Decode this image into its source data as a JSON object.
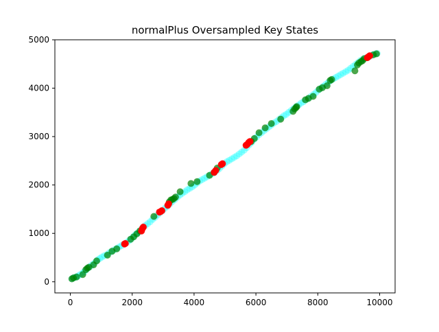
{
  "chart_data": {
    "type": "scatter",
    "title": "normalPlus Oversampled Key States",
    "xlabel": "",
    "ylabel": "",
    "xlim": [
      -500,
      10500
    ],
    "ylim": [
      -230,
      5000
    ],
    "xticks": [
      0,
      2000,
      4000,
      6000,
      8000,
      10000
    ],
    "yticks": [
      0,
      1000,
      2000,
      3000,
      4000,
      5000
    ],
    "grid": false,
    "legend": "none",
    "series": [
      {
        "color": "#00ffff",
        "marker_alpha": 0.35,
        "points": [
          [
            50,
            60
          ],
          [
            100,
            80
          ],
          [
            150,
            90
          ],
          [
            200,
            100
          ],
          [
            250,
            120
          ],
          [
            320,
            150
          ],
          [
            400,
            180
          ],
          [
            450,
            210
          ],
          [
            520,
            250
          ],
          [
            580,
            290
          ],
          [
            650,
            320
          ],
          [
            720,
            360
          ],
          [
            800,
            400
          ],
          [
            880,
            450
          ],
          [
            950,
            480
          ],
          [
            1020,
            510
          ],
          [
            1100,
            540
          ],
          [
            1180,
            560
          ],
          [
            1260,
            600
          ],
          [
            1340,
            630
          ],
          [
            1420,
            660
          ],
          [
            1500,
            690
          ],
          [
            1580,
            720
          ],
          [
            1660,
            750
          ],
          [
            1740,
            780
          ],
          [
            1820,
            810
          ],
          [
            1900,
            850
          ],
          [
            1960,
            880
          ],
          [
            2020,
            920
          ],
          [
            2080,
            960
          ],
          [
            2140,
            990
          ],
          [
            2200,
            1020
          ],
          [
            2260,
            1060
          ],
          [
            2340,
            1120
          ],
          [
            2420,
            1160
          ],
          [
            2500,
            1200
          ],
          [
            2580,
            1240
          ],
          [
            2660,
            1290
          ],
          [
            2740,
            1330
          ],
          [
            2820,
            1380
          ],
          [
            2900,
            1430
          ],
          [
            2980,
            1470
          ],
          [
            3060,
            1520
          ],
          [
            3140,
            1560
          ],
          [
            3220,
            1610
          ],
          [
            3300,
            1660
          ],
          [
            3380,
            1700
          ],
          [
            3460,
            1750
          ],
          [
            3540,
            1790
          ],
          [
            3620,
            1830
          ],
          [
            3700,
            1860
          ],
          [
            3780,
            1900
          ],
          [
            3860,
            1930
          ],
          [
            3940,
            1960
          ],
          [
            4020,
            2000
          ],
          [
            4100,
            2040
          ],
          [
            4180,
            2080
          ],
          [
            4260,
            2110
          ],
          [
            4340,
            2140
          ],
          [
            4420,
            2170
          ],
          [
            4500,
            2200
          ],
          [
            4580,
            2230
          ],
          [
            4660,
            2260
          ],
          [
            4740,
            2300
          ],
          [
            4820,
            2340
          ],
          [
            4900,
            2390
          ],
          [
            4980,
            2440
          ],
          [
            5060,
            2480
          ],
          [
            5140,
            2510
          ],
          [
            5220,
            2540
          ],
          [
            5300,
            2570
          ],
          [
            5380,
            2600
          ],
          [
            5460,
            2640
          ],
          [
            5540,
            2680
          ],
          [
            5620,
            2720
          ],
          [
            5700,
            2770
          ],
          [
            5780,
            2830
          ],
          [
            5860,
            2880
          ],
          [
            5940,
            2940
          ],
          [
            6020,
            2990
          ],
          [
            6100,
            3040
          ],
          [
            6180,
            3080
          ],
          [
            6260,
            3120
          ],
          [
            6340,
            3160
          ],
          [
            6420,
            3200
          ],
          [
            6500,
            3240
          ],
          [
            6580,
            3280
          ],
          [
            6660,
            3310
          ],
          [
            6740,
            3350
          ],
          [
            6820,
            3390
          ],
          [
            6900,
            3430
          ],
          [
            6980,
            3460
          ],
          [
            7060,
            3500
          ],
          [
            7140,
            3540
          ],
          [
            7220,
            3580
          ],
          [
            7300,
            3620
          ],
          [
            7380,
            3650
          ],
          [
            7460,
            3690
          ],
          [
            7540,
            3720
          ],
          [
            7620,
            3760
          ],
          [
            7700,
            3790
          ],
          [
            7780,
            3830
          ],
          [
            7860,
            3870
          ],
          [
            7940,
            3910
          ],
          [
            8020,
            3960
          ],
          [
            8100,
            4000
          ],
          [
            8180,
            4040
          ],
          [
            8260,
            4080
          ],
          [
            8340,
            4120
          ],
          [
            8420,
            4160
          ],
          [
            8500,
            4190
          ],
          [
            8580,
            4220
          ],
          [
            8660,
            4250
          ],
          [
            8740,
            4280
          ],
          [
            8820,
            4310
          ],
          [
            8900,
            4340
          ],
          [
            8980,
            4370
          ],
          [
            9060,
            4410
          ],
          [
            9140,
            4450
          ],
          [
            9220,
            4490
          ],
          [
            9300,
            4530
          ],
          [
            9380,
            4570
          ],
          [
            9460,
            4600
          ],
          [
            9540,
            4620
          ],
          [
            9620,
            4640
          ],
          [
            9700,
            4660
          ],
          [
            9780,
            4690
          ],
          [
            9860,
            4710
          ],
          [
            9920,
            4720
          ]
        ]
      },
      {
        "color": "#008000",
        "marker_alpha": 0.7,
        "points": [
          [
            50,
            60
          ],
          [
            100,
            80
          ],
          [
            200,
            100
          ],
          [
            400,
            150
          ],
          [
            500,
            250
          ],
          [
            550,
            280
          ],
          [
            600,
            300
          ],
          [
            750,
            350
          ],
          [
            850,
            430
          ],
          [
            1200,
            550
          ],
          [
            1350,
            630
          ],
          [
            1500,
            680
          ],
          [
            1950,
            880
          ],
          [
            2050,
            930
          ],
          [
            2150,
            990
          ],
          [
            2250,
            1050
          ],
          [
            2700,
            1350
          ],
          [
            3200,
            1650
          ],
          [
            3250,
            1690
          ],
          [
            3300,
            1700
          ],
          [
            3350,
            1720
          ],
          [
            3400,
            1750
          ],
          [
            3550,
            1860
          ],
          [
            3900,
            2030
          ],
          [
            4100,
            2070
          ],
          [
            4500,
            2200
          ],
          [
            4650,
            2260
          ],
          [
            4750,
            2350
          ],
          [
            5850,
            2900
          ],
          [
            5950,
            2960
          ],
          [
            6100,
            3080
          ],
          [
            6300,
            3180
          ],
          [
            6500,
            3270
          ],
          [
            6800,
            3360
          ],
          [
            7200,
            3520
          ],
          [
            7250,
            3570
          ],
          [
            7300,
            3600
          ],
          [
            7320,
            3620
          ],
          [
            7600,
            3760
          ],
          [
            7700,
            3790
          ],
          [
            7850,
            3830
          ],
          [
            8050,
            3980
          ],
          [
            8150,
            4010
          ],
          [
            8300,
            4050
          ],
          [
            8400,
            4160
          ],
          [
            8450,
            4180
          ],
          [
            9200,
            4360
          ],
          [
            9280,
            4480
          ],
          [
            9330,
            4520
          ],
          [
            9400,
            4550
          ],
          [
            9450,
            4570
          ],
          [
            9500,
            4610
          ],
          [
            9600,
            4630
          ],
          [
            9800,
            4690
          ],
          [
            9900,
            4710
          ]
        ]
      },
      {
        "color": "#ff0000",
        "marker_alpha": 0.95,
        "points": [
          [
            1750,
            780
          ],
          [
            1780,
            790
          ],
          [
            2300,
            1050
          ],
          [
            2330,
            1100
          ],
          [
            2360,
            1130
          ],
          [
            2880,
            1440
          ],
          [
            2920,
            1450
          ],
          [
            2960,
            1470
          ],
          [
            3150,
            1580
          ],
          [
            3180,
            1610
          ],
          [
            4650,
            2260
          ],
          [
            4700,
            2300
          ],
          [
            4880,
            2420
          ],
          [
            4920,
            2440
          ],
          [
            5680,
            2820
          ],
          [
            5720,
            2840
          ],
          [
            5770,
            2880
          ],
          [
            5810,
            2900
          ],
          [
            9600,
            4630
          ],
          [
            9640,
            4650
          ],
          [
            9680,
            4670
          ]
        ]
      }
    ]
  }
}
